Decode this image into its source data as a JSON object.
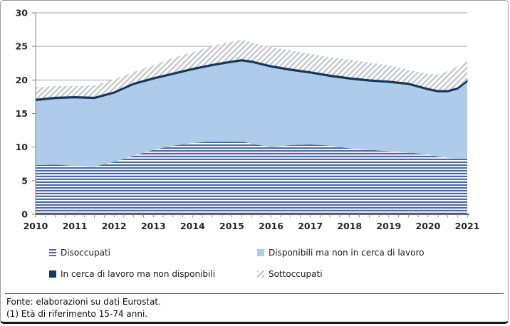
{
  "chart_data": {
    "type": "area",
    "stacked": true,
    "title": "",
    "xlabel": "",
    "ylabel": "",
    "ylim": [
      0,
      30
    ],
    "y_ticks": [
      0,
      5,
      10,
      15,
      20,
      25,
      30
    ],
    "x_tick_years": [
      "2010",
      "2011",
      "2012",
      "2013",
      "2014",
      "2015",
      "2016",
      "2017",
      "2018",
      "2019",
      "2020",
      "2021"
    ],
    "x_minor_tick_step": 0.25,
    "grid": "horizontal",
    "legend_position": "bottom",
    "x": [
      2010,
      2010.5,
      2011,
      2011.5,
      2012,
      2012.5,
      2013,
      2013.5,
      2014,
      2014.5,
      2015,
      2015.25,
      2015.5,
      2016,
      2016.5,
      2017,
      2017.5,
      2018,
      2018.5,
      2019,
      2019.5,
      2020,
      2020.25,
      2020.5,
      2020.75,
      2021
    ],
    "series": [
      {
        "name": "Disoccupati",
        "pattern": "hstripes",
        "color": "#4b69a9",
        "values": [
          7.3,
          7.4,
          7.2,
          7.1,
          7.8,
          8.7,
          9.6,
          10.2,
          10.6,
          10.9,
          10.8,
          10.9,
          10.5,
          10.0,
          10.3,
          10.4,
          10.2,
          9.8,
          9.6,
          9.4,
          9.2,
          8.9,
          8.6,
          8.4,
          8.3,
          8.3
        ]
      },
      {
        "name": "Disponibili ma non in cerca di lavoro",
        "pattern": "solid",
        "color": "#aecbea",
        "values": [
          9.6,
          9.8,
          10.1,
          10.1,
          10.2,
          10.6,
          10.5,
          10.6,
          10.9,
          11.2,
          11.8,
          11.9,
          12.1,
          11.9,
          11.1,
          10.6,
          10.3,
          10.3,
          10.2,
          10.2,
          10.1,
          9.6,
          9.6,
          9.8,
          10.3,
          11.4
        ]
      },
      {
        "name": "In cerca di lavoro ma non disponibili",
        "pattern": "solid",
        "color": "#17375e",
        "values": [
          0.3,
          0.3,
          0.3,
          0.3,
          0.3,
          0.3,
          0.3,
          0.3,
          0.3,
          0.3,
          0.3,
          0.3,
          0.3,
          0.3,
          0.3,
          0.3,
          0.3,
          0.3,
          0.3,
          0.3,
          0.3,
          0.3,
          0.3,
          0.3,
          0.3,
          0.3
        ]
      },
      {
        "name": "Sottoccupati",
        "pattern": "hatch",
        "color": "#c7cad1",
        "values": [
          1.7,
          1.6,
          1.5,
          1.7,
          1.8,
          1.6,
          1.8,
          2.2,
          2.3,
          2.7,
          2.8,
          2.9,
          2.7,
          2.7,
          2.7,
          2.6,
          2.6,
          2.6,
          2.5,
          2.3,
          1.9,
          2.1,
          2.3,
          2.8,
          3.1,
          3.0
        ]
      }
    ],
    "colors": {
      "gridline": "#a6a6a6",
      "axis": "#808080",
      "axis_bottom": "#404040",
      "tick": "#8c8c8c",
      "label_text": "#262626"
    }
  },
  "legend": {
    "items": [
      {
        "label": "Disoccupati",
        "swatch": "hstripes",
        "color": "#4b69a9"
      },
      {
        "label": "Disponibili ma non in cerca di lavoro",
        "swatch": "solid",
        "color": "#aecbea"
      },
      {
        "label": "In cerca di lavoro ma non disponibili",
        "swatch": "solid",
        "color": "#17375e"
      },
      {
        "label": "Sottoccupati",
        "swatch": "hatch",
        "color": "#c7cad1"
      }
    ]
  },
  "footer": {
    "source_line": "Fonte: elaborazioni su dati Eurostat.",
    "note_line": "(1) Età di riferimento 15-74 anni."
  }
}
